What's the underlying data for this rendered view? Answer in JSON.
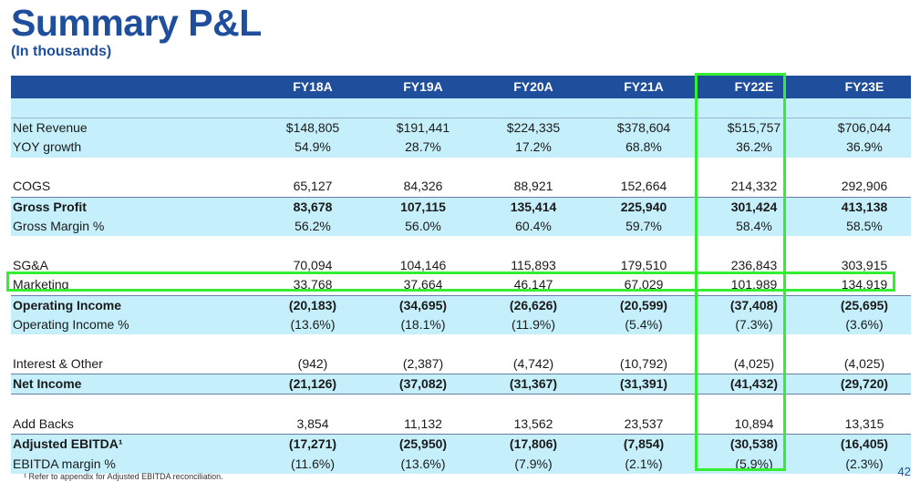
{
  "title": "Summary P&L",
  "subtitle": "(In thousands)",
  "columns": [
    "FY18A",
    "FY19A",
    "FY20A",
    "FY21A",
    "FY22E",
    "FY23E"
  ],
  "rows": [
    {
      "label": "Net Revenue",
      "values": [
        "$148,805",
        "$191,441",
        "$224,335",
        "$378,604",
        "$515,757",
        "$706,044"
      ]
    },
    {
      "label": "YOY growth",
      "values": [
        "54.9%",
        "28.7%",
        "17.2%",
        "68.8%",
        "36.2%",
        "36.9%"
      ]
    },
    {
      "label": "COGS",
      "values": [
        "65,127",
        "84,326",
        "88,921",
        "152,664",
        "214,332",
        "292,906"
      ]
    },
    {
      "label": "Gross Profit",
      "values": [
        "83,678",
        "107,115",
        "135,414",
        "225,940",
        "301,424",
        "413,138"
      ]
    },
    {
      "label": "Gross Margin %",
      "values": [
        "56.2%",
        "56.0%",
        "60.4%",
        "59.7%",
        "58.4%",
        "58.5%"
      ]
    },
    {
      "label": "SG&A",
      "values": [
        "70,094",
        "104,146",
        "115,893",
        "179,510",
        "236,843",
        "303,915"
      ]
    },
    {
      "label": "Marketing",
      "values": [
        "33,768",
        "37,664",
        "46,147",
        "67,029",
        "101,989",
        "134,919"
      ]
    },
    {
      "label": "Operating Income",
      "values": [
        "(20,183)",
        "(34,695)",
        "(26,626)",
        "(20,599)",
        "(37,408)",
        "(25,695)"
      ]
    },
    {
      "label": "Operating Income %",
      "values": [
        "(13.6%)",
        "(18.1%)",
        "(11.9%)",
        "(5.4%)",
        "(7.3%)",
        "(3.6%)"
      ]
    },
    {
      "label": "Interest & Other",
      "values": [
        "(942)",
        "(2,387)",
        "(4,742)",
        "(10,792)",
        "(4,025)",
        "(4,025)"
      ]
    },
    {
      "label": "Net Income",
      "values": [
        "(21,126)",
        "(37,082)",
        "(31,367)",
        "(31,391)",
        "(41,432)",
        "(29,720)"
      ]
    },
    {
      "label": "Add Backs",
      "values": [
        "3,854",
        "11,132",
        "13,562",
        "23,537",
        "10,894",
        "13,315"
      ]
    },
    {
      "label": "Adjusted EBITDA¹",
      "values": [
        "(17,271)",
        "(25,950)",
        "(17,806)",
        "(7,854)",
        "(30,538)",
        "(16,405)"
      ]
    },
    {
      "label": "EBITDA margin %",
      "values": [
        "(11.6%)",
        "(13.6%)",
        "(7.9%)",
        "(2.1%)",
        "(5.9%)",
        "(2.3%)"
      ]
    }
  ],
  "footnote": "¹ Refer to appendix for Adjusted EBITDA reconciliation.",
  "page_number": "42",
  "colors": {
    "brand": "#1f4e9c",
    "band": "#c5f0fb",
    "highlight_box": "#33ee33"
  }
}
